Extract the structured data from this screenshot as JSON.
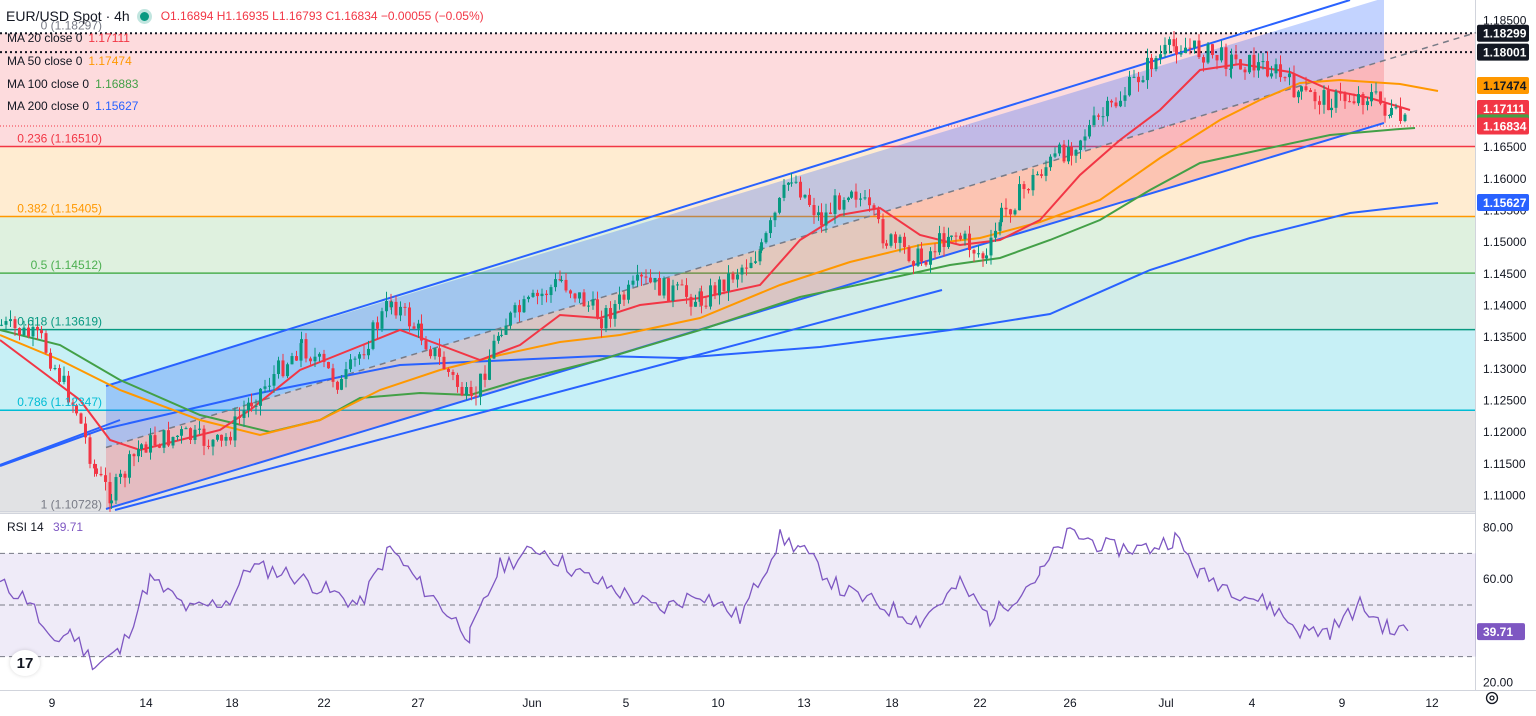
{
  "header": {
    "symbol": "EUR/USD Spot · 4h",
    "ohlc": "O1.16894 H1.16935 L1.16793 C1.16834 −0.00055 (−0.05%)",
    "status_color": "#089981"
  },
  "indicators": [
    {
      "label": "MA 20 close 0",
      "value": "1.17111",
      "color": "#f23645"
    },
    {
      "label": "MA 50 close 0",
      "value": "1.17474",
      "color": "#ff9800"
    },
    {
      "label": "MA 100 close 0",
      "value": "1.16883",
      "color": "#43a047"
    },
    {
      "label": "MA 200 close 0",
      "value": "1.15627",
      "color": "#2962ff"
    }
  ],
  "rsi": {
    "label": "RSI 14",
    "value": "39.71"
  },
  "logo_text": "17",
  "icons": {
    "status": "live-dot-icon",
    "logo": "tradingview-logo-icon",
    "settings": "settings-gear-icon"
  },
  "chart_data": {
    "type": "candlestick",
    "price_axis": {
      "ticks": [
        "1.18500",
        "1.18000",
        "1.17500",
        "1.17000",
        "1.16500",
        "1.16000",
        "1.15500",
        "1.15000",
        "1.14500",
        "1.14000",
        "1.13500",
        "1.13000",
        "1.12500",
        "1.12000",
        "1.11500",
        "1.11000"
      ],
      "range": [
        1.1065,
        1.1875
      ]
    },
    "time_axis": {
      "labels": [
        "9",
        "14",
        "18",
        "22",
        "27",
        "Jun",
        "5",
        "10",
        "13",
        "18",
        "22",
        "26",
        "Jul",
        "4",
        "9",
        "12"
      ]
    },
    "fibonacci": [
      {
        "label": "0 (1.18297)",
        "price": 1.18297,
        "color": "#787b86"
      },
      {
        "label": "0.236 (1.16510)",
        "price": 1.1651,
        "color": "#f23645"
      },
      {
        "label": "0.382 (1.15405)",
        "price": 1.15405,
        "color": "#ff9800"
      },
      {
        "label": "0.5 (1.14512)",
        "price": 1.14512,
        "color": "#4caf50"
      },
      {
        "label": "0.618 (1.13619)",
        "price": 1.13619,
        "color": "#089981"
      },
      {
        "label": "0.786 (1.12347)",
        "price": 1.12347,
        "color": "#00bcd4"
      },
      {
        "label": "1 (1.10728)",
        "price": 1.10728,
        "color": "#787b86"
      }
    ],
    "price_labels": [
      {
        "text": "1.18299",
        "price": 1.18299,
        "bg": "#131722",
        "fg": "#ffffff"
      },
      {
        "text": "1.18001",
        "price": 1.18001,
        "bg": "#131722",
        "fg": "#ffffff"
      },
      {
        "text": "1.17474",
        "price": 1.17474,
        "bg": "#ff9800",
        "fg": "#131722"
      },
      {
        "text": "1.17111",
        "price": 1.17111,
        "bg": "#f23645",
        "fg": "#ffffff"
      },
      {
        "text": "1.16883",
        "price": 1.16883,
        "bg": "#43a047",
        "fg": "#ffffff"
      },
      {
        "text": "1.16834",
        "price": 1.16834,
        "bg": "#f23645",
        "fg": "#ffffff"
      },
      {
        "text": "1.15627",
        "price": 1.15627,
        "bg": "#2962ff",
        "fg": "#ffffff"
      }
    ],
    "dotted_levels": [
      1.18299,
      1.18001
    ],
    "rsi_axis": {
      "ticks": [
        "80.00",
        "60.00",
        "20.00"
      ],
      "range": [
        16,
        84
      ],
      "bands": [
        70,
        50,
        30
      ]
    },
    "rsi_label": {
      "text": "39.71",
      "value": 39.71
    }
  }
}
